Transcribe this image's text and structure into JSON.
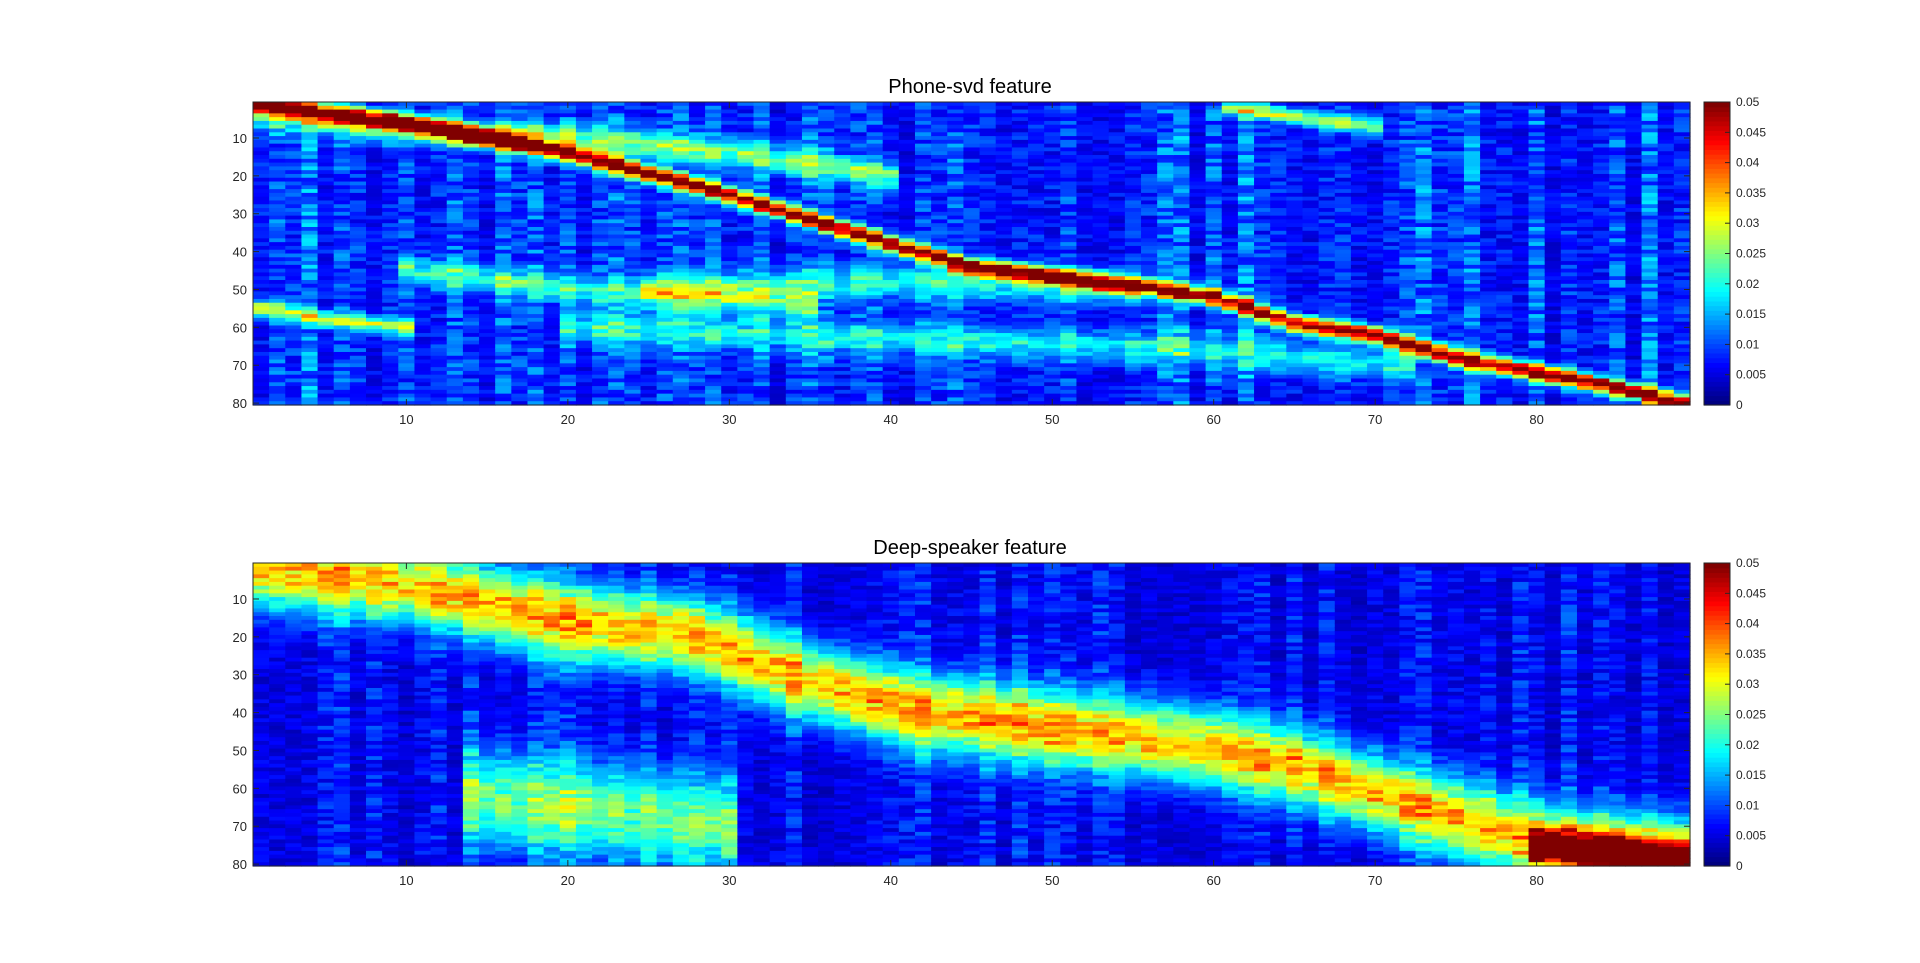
{
  "chart_data": [
    {
      "type": "heatmap",
      "title": "Phone-svd feature",
      "xlabel": "",
      "ylabel": "",
      "x_range": [
        1,
        89
      ],
      "y_range": [
        1,
        80
      ],
      "y_reversed": true,
      "x_ticks": [
        "10",
        "20",
        "30",
        "40",
        "50",
        "60",
        "70",
        "80"
      ],
      "y_ticks": [
        "10",
        "20",
        "30",
        "40",
        "50",
        "60",
        "70",
        "80"
      ],
      "colormap": "jet",
      "clim": [
        0,
        0.05
      ],
      "colorbar_ticks": [
        "0",
        "0.005",
        "0.01",
        "0.015",
        "0.02",
        "0.025",
        "0.03",
        "0.035",
        "0.04",
        "0.045",
        "0.05"
      ],
      "colorbar_location": "right",
      "ridges": [
        {
          "points": [
            [
              1,
              1
            ],
            [
              6,
              4
            ],
            [
              10,
              6
            ],
            [
              20,
              14
            ],
            [
              30,
              25
            ],
            [
              40,
              38
            ],
            [
              45,
              44
            ],
            [
              55,
              49
            ],
            [
              60,
              52
            ],
            [
              65,
              59
            ],
            [
              70,
              62
            ],
            [
              75,
              68
            ],
            [
              80,
              72
            ],
            [
              85,
              76
            ],
            [
              89,
              80
            ]
          ],
          "peak": 0.048,
          "width": 1.5
        },
        {
          "points": [
            [
              1,
              4
            ],
            [
              10,
              8
            ],
            [
              20,
              10
            ],
            [
              30,
              14
            ],
            [
              40,
              20
            ]
          ],
          "peak": 0.018,
          "width": 2.5
        },
        {
          "points": [
            [
              1,
              55
            ],
            [
              5,
              58
            ],
            [
              10,
              60
            ]
          ],
          "peak": 0.022,
          "width": 1.5
        },
        {
          "points": [
            [
              25,
              50
            ],
            [
              40,
              48
            ],
            [
              55,
              50
            ]
          ],
          "peak": 0.013,
          "width": 3
        },
        {
          "points": [
            [
              61,
              2
            ],
            [
              66,
              5
            ],
            [
              70,
              7
            ]
          ],
          "peak": 0.02,
          "width": 1.5
        },
        {
          "points": [
            [
              10,
              45
            ],
            [
              20,
              50
            ],
            [
              35,
              54
            ]
          ],
          "peak": 0.014,
          "width": 2.5
        },
        {
          "points": [
            [
              20,
              60
            ],
            [
              40,
              63
            ],
            [
              60,
              66
            ],
            [
              72,
              70
            ]
          ],
          "peak": 0.012,
          "width": 3
        }
      ],
      "background": 0.009
    },
    {
      "type": "heatmap",
      "title": "Deep-speaker feature",
      "xlabel": "",
      "ylabel": "",
      "x_range": [
        1,
        89
      ],
      "y_range": [
        1,
        80
      ],
      "y_reversed": true,
      "x_ticks": [
        "10",
        "20",
        "30",
        "40",
        "50",
        "60",
        "70",
        "80"
      ],
      "y_ticks": [
        "10",
        "20",
        "30",
        "40",
        "50",
        "60",
        "70",
        "80"
      ],
      "colormap": "jet",
      "clim": [
        0,
        0.05
      ],
      "colorbar_ticks": [
        "0",
        "0.005",
        "0.01",
        "0.015",
        "0.02",
        "0.025",
        "0.03",
        "0.035",
        "0.04",
        "0.045",
        "0.05"
      ],
      "colorbar_location": "right",
      "ridges": [
        {
          "points": [
            [
              1,
              2
            ],
            [
              10,
              6
            ],
            [
              20,
              16
            ],
            [
              28,
              20
            ],
            [
              35,
              32
            ],
            [
              42,
              40
            ],
            [
              50,
              44
            ],
            [
              58,
              48
            ],
            [
              65,
              54
            ],
            [
              72,
              64
            ],
            [
              80,
              74
            ],
            [
              89,
              78
            ]
          ],
          "peak": 0.031,
          "width": 7
        },
        {
          "points": [
            [
              14,
              62
            ],
            [
              22,
              66
            ],
            [
              30,
              70
            ]
          ],
          "peak": 0.02,
          "width": 9
        },
        {
          "points": [
            [
              80,
              75
            ],
            [
              89,
              79
            ]
          ],
          "peak": 0.038,
          "width": 3
        }
      ],
      "background": 0.006
    }
  ]
}
